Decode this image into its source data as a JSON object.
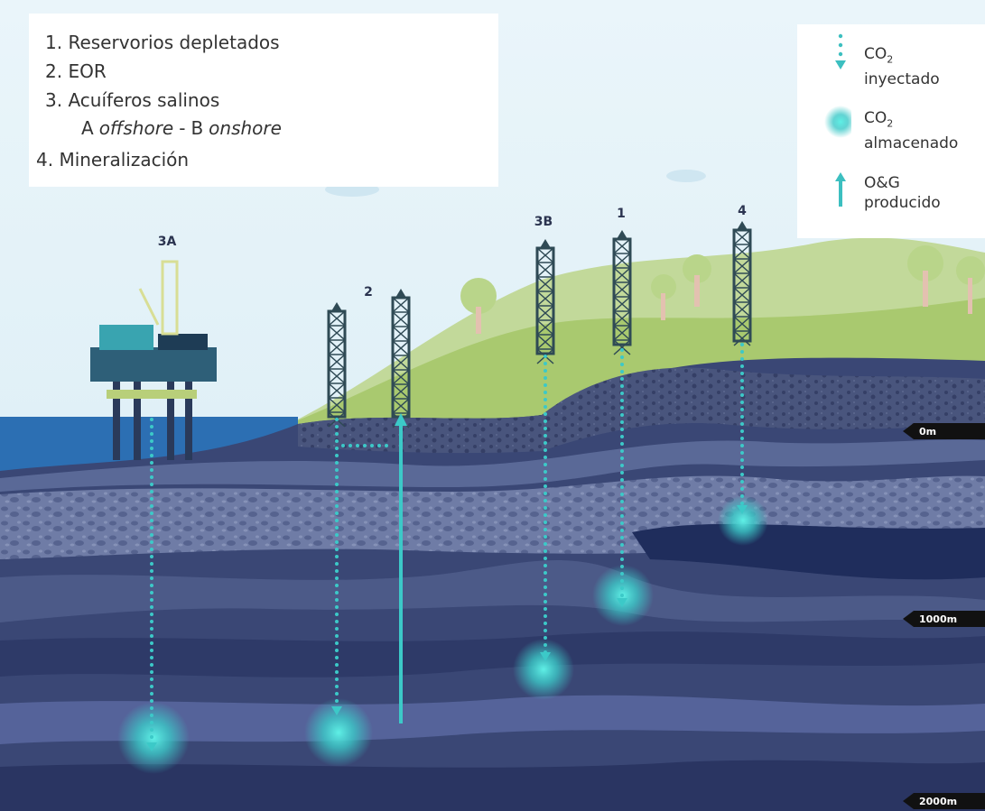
{
  "list": {
    "items": [
      "1. Reservorios depletados",
      "2. EOR",
      "3. Acuíferos salinos",
      "4. Mineralización"
    ],
    "sub": [
      "A",
      "offshore",
      "-",
      "B",
      "onshore"
    ]
  },
  "key": {
    "items": [
      {
        "line1": "CO",
        "sub": "2",
        "line2": "inyectado"
      },
      {
        "line1": "CO",
        "sub": "2",
        "line2": "almacenado"
      },
      {
        "line1": "O&G",
        "line2": "producido"
      }
    ]
  },
  "wells": [
    "3A",
    "2",
    "3B",
    "1",
    "4"
  ],
  "depths": [
    "0m",
    "1000m",
    "2000m"
  ]
}
